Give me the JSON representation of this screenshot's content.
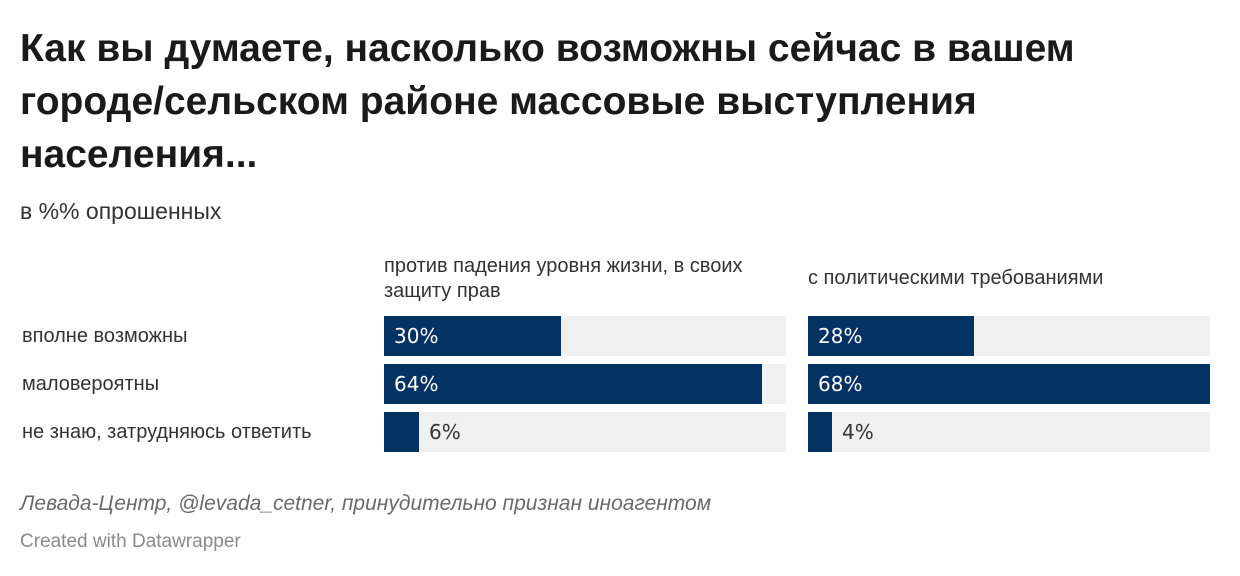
{
  "title": "Как вы думаете, насколько возможны сейчас в вашем городе/сельском районе массовые выступления населения...",
  "subtitle": "в %% опрошенных",
  "chart_data": {
    "type": "bar",
    "orientation": "horizontal",
    "categories": [
      "вполне возможны",
      "маловероятны",
      "не знаю, затрудняюсь ответить"
    ],
    "series": [
      {
        "name": "против падения уровня жизни, в своих защиту прав",
        "values": [
          30,
          64,
          6
        ]
      },
      {
        "name": "с политическими требованиями",
        "values": [
          28,
          68,
          4
        ]
      }
    ],
    "xlim": [
      0,
      68
    ],
    "value_suffix": "%",
    "grid": false,
    "colors": {
      "bar": "#043263",
      "track": "#f0f0f0"
    }
  },
  "source": "Левада-Центр, @levada_cetner, принудительно признан иноагентом",
  "credit": "Created with Datawrapper"
}
